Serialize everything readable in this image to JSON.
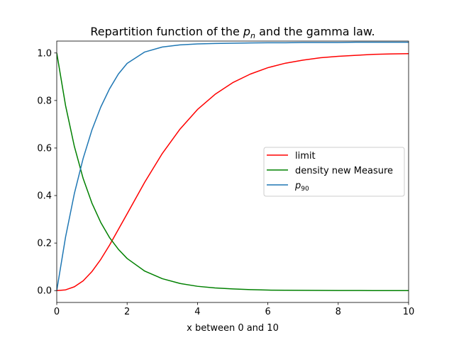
{
  "chart_data": {
    "type": "line",
    "title_parts": {
      "prefix": "Repartition function of the ",
      "var": "p",
      "var_sub": "n",
      "suffix": " and the gamma law."
    },
    "xlabel": "x between 0 and 10",
    "ylabel": "",
    "xlim": [
      0,
      10
    ],
    "ylim": [
      -0.05,
      1.05
    ],
    "xticks": [
      0,
      2,
      4,
      6,
      8,
      10
    ],
    "yticks": [
      0.0,
      0.2,
      0.4,
      0.6,
      0.8,
      1.0
    ],
    "xtick_labels": [
      "0",
      "2",
      "4",
      "6",
      "8",
      "10"
    ],
    "ytick_labels": [
      "0.0",
      "0.2",
      "0.4",
      "0.6",
      "0.8",
      "1.0"
    ],
    "grid": false,
    "legend_placement": "center-right",
    "series": [
      {
        "name": "limit",
        "color": "#ff0000",
        "x": [
          0,
          0.25,
          0.5,
          0.75,
          1,
          1.25,
          1.5,
          1.75,
          2,
          2.5,
          3,
          3.5,
          4,
          4.5,
          5,
          5.5,
          6,
          6.5,
          7,
          7.5,
          8,
          8.5,
          9,
          9.5,
          10
        ],
        "y": [
          0,
          0.003,
          0.016,
          0.041,
          0.08,
          0.131,
          0.191,
          0.257,
          0.323,
          0.456,
          0.577,
          0.679,
          0.762,
          0.826,
          0.875,
          0.911,
          0.938,
          0.957,
          0.97,
          0.98,
          0.986,
          0.99,
          0.994,
          0.996,
          0.997
        ]
      },
      {
        "name": "density new Measure",
        "color": "#008000",
        "x": [
          0,
          0.25,
          0.5,
          0.75,
          1,
          1.25,
          1.5,
          1.75,
          2,
          2.5,
          3,
          3.5,
          4,
          4.5,
          5,
          5.5,
          6,
          6.5,
          7,
          7.5,
          8,
          8.5,
          9,
          9.5,
          10
        ],
        "y": [
          1.0,
          0.779,
          0.607,
          0.472,
          0.368,
          0.287,
          0.223,
          0.174,
          0.135,
          0.082,
          0.05,
          0.03,
          0.018,
          0.011,
          0.007,
          0.004,
          0.002,
          0.0015,
          0.0009,
          0.0006,
          0.0003,
          0.0002,
          0.0001,
          0.0001,
          0.0
        ]
      },
      {
        "name_parts": {
          "var": "p",
          "var_sub": "90"
        },
        "color": "#1f77b4",
        "x": [
          0,
          0.25,
          0.5,
          0.75,
          1,
          1.25,
          1.5,
          1.75,
          2,
          2.5,
          3,
          3.5,
          4,
          4.5,
          5,
          5.5,
          6,
          6.5,
          7,
          7.5,
          8,
          8.5,
          9,
          9.5,
          10
        ],
        "y": [
          0,
          0.225,
          0.408,
          0.556,
          0.676,
          0.772,
          0.849,
          0.911,
          0.956,
          1.004,
          1.025,
          1.034,
          1.038,
          1.04,
          1.041,
          1.042,
          1.043,
          1.043,
          1.044,
          1.044,
          1.044,
          1.045,
          1.045,
          1.045,
          1.045
        ]
      }
    ]
  }
}
